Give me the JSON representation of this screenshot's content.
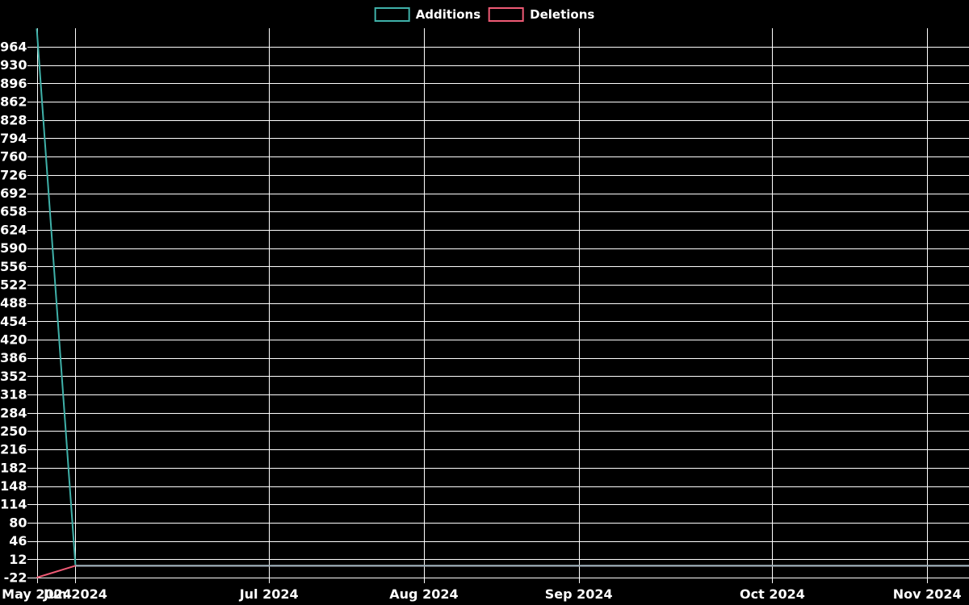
{
  "app": {
    "background_color": "#000000",
    "text_color": "#ffffff",
    "grid_color": "#ffffff"
  },
  "legend": {
    "items": [
      {
        "label": "Additions",
        "color": "#3fb1a9"
      },
      {
        "label": "Deletions",
        "color": "#ef5a75"
      }
    ]
  },
  "chart_data": {
    "type": "line",
    "title": "",
    "xlabel": "",
    "ylabel": "",
    "grid": true,
    "grid_color": "#ffffff",
    "text_color": "#ffffff",
    "background": "#000000",
    "legend_position": "top-center",
    "x_unit": "week",
    "x": [
      "2024-05-26",
      "2024-06-02",
      "2024-06-09",
      "2024-06-16",
      "2024-06-23",
      "2024-06-30",
      "2024-07-07",
      "2024-07-14",
      "2024-07-21",
      "2024-07-28",
      "2024-08-04",
      "2024-08-11",
      "2024-08-18",
      "2024-08-25",
      "2024-09-01",
      "2024-09-08",
      "2024-09-15",
      "2024-09-22",
      "2024-09-29",
      "2024-10-06",
      "2024-10-13",
      "2024-10-20",
      "2024-10-27",
      "2024-11-03",
      "2024-11-10"
    ],
    "series": [
      {
        "name": "Additions",
        "color": "#3fb1a9",
        "values": [
          998,
          0,
          0,
          0,
          0,
          0,
          0,
          0,
          0,
          0,
          0,
          0,
          0,
          0,
          0,
          0,
          0,
          0,
          0,
          0,
          0,
          0,
          0,
          0,
          0
        ]
      },
      {
        "name": "Deletions",
        "color": "#ef5a75",
        "values": [
          -22,
          0,
          0,
          0,
          0,
          0,
          0,
          0,
          0,
          0,
          0,
          0,
          0,
          0,
          0,
          0,
          0,
          0,
          0,
          0,
          0,
          0,
          0,
          0,
          0
        ]
      }
    ],
    "overlap_line_color": "#9db5bf",
    "overlap_line_value": 0,
    "overlap_line_from_index": 1,
    "y_ticks": [
      -22,
      12,
      46,
      80,
      114,
      148,
      182,
      216,
      250,
      284,
      318,
      352,
      386,
      420,
      454,
      488,
      522,
      556,
      590,
      624,
      658,
      692,
      726,
      760,
      794,
      828,
      862,
      896,
      930,
      964
    ],
    "ylim": [
      -22,
      998.5
    ],
    "xlim_index": [
      -0.157,
      24.08
    ],
    "x_ticks": [
      {
        "label": "May 2024",
        "index": 0
      },
      {
        "label": "Jun 2024",
        "index": 1
      },
      {
        "label": "Jul 2024",
        "index": 6
      },
      {
        "label": "Aug 2024",
        "index": 10
      },
      {
        "label": "Sep 2024",
        "index": 14
      },
      {
        "label": "Oct 2024",
        "index": 19
      },
      {
        "label": "Nov 2024",
        "index": 23
      }
    ]
  }
}
